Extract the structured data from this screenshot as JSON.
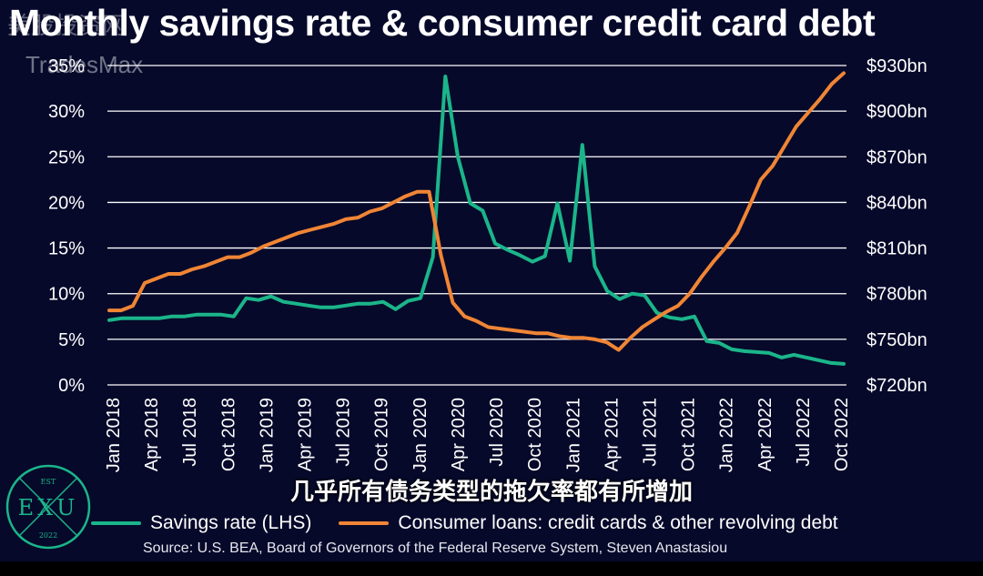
{
  "title": "Monthly savings rate & consumer credit card debt",
  "watermark_top": "美股投资网",
  "watermark_brand": "TradesMax",
  "subtitle_overlay": "几乎所有债务类型的拖欠率都有所增加",
  "source": "Source: U.S. BEA, Board of Governors of the Federal Reserve System, Steven Anastasiou",
  "logo": {
    "top": "EST",
    "letters": "EXU",
    "bottom": "2022"
  },
  "colors": {
    "background": "#06092a",
    "savings": "#1bb58a",
    "loans": "#f08535",
    "grid": "#ffffff"
  },
  "chart_data": {
    "type": "line",
    "title": "Monthly savings rate & consumer credit card debt",
    "x_tick_labels": [
      "Jan 2018",
      "Apr 2018",
      "Jul 2018",
      "Oct 2018",
      "Jan 2019",
      "Apr 2019",
      "Jul 2019",
      "Oct 2019",
      "Jan 2020",
      "Apr 2020",
      "Jul 2020",
      "Oct 2020",
      "Jan 2021",
      "Apr 2021",
      "Jul 2021",
      "Oct 2021",
      "Jan 2022",
      "Apr 2022",
      "Jul 2022",
      "Oct 2022"
    ],
    "y_left": {
      "ticks": [
        "0%",
        "5%",
        "10%",
        "15%",
        "20%",
        "25%",
        "30%",
        "35%"
      ],
      "ylim": [
        0,
        35
      ]
    },
    "y_right": {
      "ticks": [
        "$720bn",
        "$750bn",
        "$780bn",
        "$810bn",
        "$840bn",
        "$870bn",
        "$900bn",
        "$930bn"
      ],
      "ylim": [
        720,
        930
      ]
    },
    "grid": "horizontal",
    "legend_position": "bottom",
    "series": [
      {
        "name": "Savings rate (LHS)",
        "axis": "left",
        "values": [
          7.1,
          7.3,
          7.3,
          7.3,
          7.3,
          7.5,
          7.5,
          7.7,
          7.7,
          7.7,
          7.5,
          9.5,
          9.3,
          9.7,
          9.1,
          8.9,
          8.7,
          8.5,
          8.5,
          8.7,
          8.9,
          8.9,
          9.1,
          8.3,
          9.2,
          9.5,
          14.0,
          33.8,
          25.0,
          19.9,
          19.1,
          15.5,
          14.8,
          14.2,
          13.5,
          14.1,
          19.9,
          13.6,
          26.3,
          13.0,
          10.3,
          9.4,
          10.0,
          9.8,
          7.9,
          7.4,
          7.2,
          7.5,
          4.8,
          4.6,
          3.9,
          3.7,
          3.6,
          3.5,
          3.0,
          3.3,
          3.0,
          2.7,
          2.4,
          2.3
        ]
      },
      {
        "name": "Consumer loans: credit cards & other revolving debt",
        "axis": "right",
        "values": [
          769,
          769,
          772,
          787,
          790,
          793,
          793,
          796,
          798,
          801,
          804,
          804,
          807,
          811,
          814,
          817,
          820,
          822,
          824,
          826,
          829,
          830,
          834,
          836,
          840,
          844,
          847,
          847,
          805,
          774,
          765,
          762,
          758,
          757,
          756,
          755,
          754,
          754,
          752,
          751,
          751,
          750,
          748,
          743,
          751,
          758,
          763,
          768,
          772,
          780,
          791,
          801,
          810,
          820,
          837,
          855,
          864,
          877,
          890,
          899,
          908,
          918,
          925
        ]
      }
    ]
  }
}
